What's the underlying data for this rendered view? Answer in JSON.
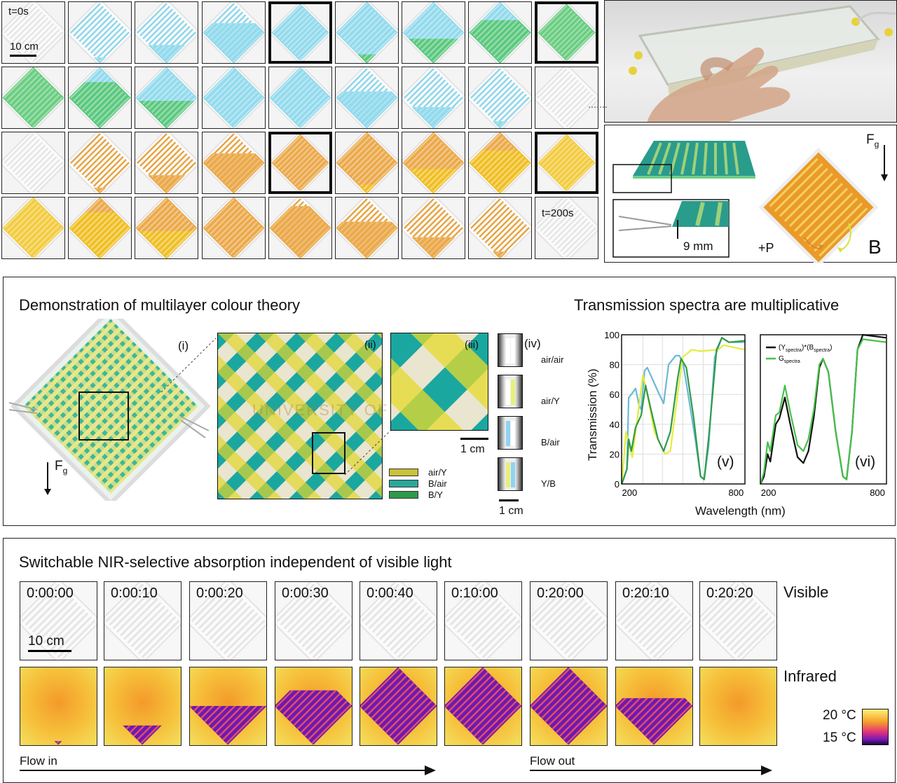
{
  "panelA": {
    "time_start": "t=0s",
    "time_end": "t=200s",
    "scale": "10 cm",
    "tiles": [
      [
        {
          "c": "clear",
          "f": 0
        },
        {
          "c": "blue",
          "f": 0.1
        },
        {
          "c": "blue",
          "f": 0.3
        },
        {
          "c": "blue",
          "f": 0.65
        },
        {
          "c": "blue",
          "f": 1,
          "thick": true
        },
        {
          "c": "blue",
          "o": "green",
          "f": 0.15
        },
        {
          "c": "blue",
          "o": "green",
          "f": 0.4
        },
        {
          "c": "blue",
          "o": "green",
          "f": 0.7
        },
        {
          "c": "green",
          "f": 1,
          "thick": true
        }
      ],
      [
        {
          "c": "green",
          "f": 1
        },
        {
          "c": "blue",
          "o": "green",
          "f": 0.75
        },
        {
          "c": "blue",
          "o": "green",
          "f": 0.45
        },
        {
          "c": "blue",
          "f": 1
        },
        {
          "c": "blue",
          "f": 1
        },
        {
          "c": "blue",
          "f": 0.6
        },
        {
          "c": "blue",
          "f": 0.35
        },
        {
          "c": "blue",
          "f": 0.12
        },
        {
          "c": "clear",
          "f": 0
        }
      ],
      [
        {
          "c": "clear",
          "f": 0
        },
        {
          "c": "orange",
          "f": 0.1
        },
        {
          "c": "orange",
          "f": 0.3
        },
        {
          "c": "orange",
          "f": 0.65
        },
        {
          "c": "orange",
          "f": 1,
          "thick": true
        },
        {
          "c": "orange",
          "o": "yellow",
          "f": 0.15
        },
        {
          "c": "orange",
          "o": "yellow",
          "f": 0.4
        },
        {
          "c": "orange",
          "o": "yellow",
          "f": 0.7
        },
        {
          "c": "yellow",
          "f": 1,
          "thick": true
        }
      ],
      [
        {
          "c": "yellow",
          "f": 1
        },
        {
          "c": "orange",
          "o": "yellow",
          "f": 0.75
        },
        {
          "c": "orange",
          "o": "yellow",
          "f": 0.45
        },
        {
          "c": "orange",
          "f": 1
        },
        {
          "c": "orange",
          "f": 0.85
        },
        {
          "c": "orange",
          "f": 0.6
        },
        {
          "c": "orange",
          "f": 0.35
        },
        {
          "c": "orange",
          "f": 0.12
        },
        {
          "c": "clear",
          "f": 0
        }
      ]
    ]
  },
  "panelB": {
    "force": "F",
    "force_sub": "g",
    "dimension": "9 mm",
    "pressure": "+P",
    "label": "B"
  },
  "panelC": {
    "title_left": "Demonstration of multilayer colour theory",
    "title_right": "Transmission spectra are multiplicative",
    "force": "F",
    "force_sub": "g",
    "sublabels": [
      "(i)",
      "(ii)",
      "(iii)",
      "(iv)"
    ],
    "watermark": "UNIVERSITY OF TORONTO",
    "scale": "1 cm",
    "legend": [
      {
        "label": "air/Y",
        "color": "#c9c23a"
      },
      {
        "label": "B/air",
        "color": "#2aa89a"
      },
      {
        "label": "B/Y",
        "color": "#2f9a4a"
      }
    ],
    "samples": [
      {
        "label": "air/air"
      },
      {
        "label": "air/Y"
      },
      {
        "label": "B/air"
      },
      {
        "label": "Y/B"
      }
    ],
    "sample_scale": "1 cm"
  },
  "chart_data": [
    {
      "type": "line",
      "panel": "(v)",
      "xlabel": "Wavelength (nm)",
      "ylabel": "Transmission (%)",
      "xlim": [
        155,
        850
      ],
      "ylim": [
        0,
        100
      ],
      "xticks": [
        200,
        800
      ],
      "yticks": [
        0,
        20,
        40,
        60,
        80,
        100
      ],
      "grid": true,
      "series": [
        {
          "color": "#6ab8d6",
          "points": [
            [
              156,
              0
            ],
            [
              185,
              10
            ],
            [
              195,
              58
            ],
            [
              210,
              60
            ],
            [
              234,
              64
            ],
            [
              255,
              52
            ],
            [
              265,
              50
            ],
            [
              285,
              76
            ],
            [
              300,
              78
            ],
            [
              330,
              70
            ],
            [
              360,
              62
            ],
            [
              392,
              54
            ],
            [
              420,
              80
            ],
            [
              460,
              86
            ],
            [
              480,
              86
            ],
            [
              500,
              82
            ],
            [
              530,
              60
            ],
            [
              570,
              30
            ],
            [
              600,
              5
            ],
            [
              620,
              3
            ],
            [
              645,
              25
            ],
            [
              680,
              85
            ],
            [
              720,
              98
            ],
            [
              760,
              95
            ],
            [
              850,
              95
            ]
          ]
        },
        {
          "color": "#e3ec3c",
          "points": [
            [
              156,
              0
            ],
            [
              180,
              35
            ],
            [
              200,
              25
            ],
            [
              215,
              18
            ],
            [
              240,
              40
            ],
            [
              275,
              73
            ],
            [
              300,
              60
            ],
            [
              340,
              35
            ],
            [
              400,
              20
            ],
            [
              430,
              22
            ],
            [
              470,
              60
            ],
            [
              500,
              85
            ],
            [
              550,
              90
            ],
            [
              600,
              89
            ],
            [
              700,
              90
            ],
            [
              730,
              93
            ],
            [
              850,
              90
            ]
          ]
        },
        {
          "color": "#2f9a4a",
          "points": [
            [
              156,
              0
            ],
            [
              185,
              10
            ],
            [
              195,
              30
            ],
            [
              210,
              22
            ],
            [
              234,
              38
            ],
            [
              265,
              46
            ],
            [
              290,
              66
            ],
            [
              320,
              50
            ],
            [
              360,
              30
            ],
            [
              392,
              22
            ],
            [
              430,
              35
            ],
            [
              470,
              70
            ],
            [
              490,
              84
            ],
            [
              520,
              78
            ],
            [
              560,
              45
            ],
            [
              600,
              5
            ],
            [
              620,
              3
            ],
            [
              645,
              30
            ],
            [
              690,
              90
            ],
            [
              720,
              98
            ],
            [
              760,
              95
            ],
            [
              850,
              96
            ]
          ]
        }
      ]
    },
    {
      "type": "line",
      "panel": "(vi)",
      "xlabel": "Wavelength (nm)",
      "xlim": [
        155,
        850
      ],
      "ylim": [
        0,
        100
      ],
      "xticks": [
        200,
        800
      ],
      "grid": false,
      "legend": "top-left",
      "series": [
        {
          "name": "(Yspectra)*(Bspectra)",
          "color": "#111111",
          "points": [
            [
              156,
              0
            ],
            [
              175,
              5
            ],
            [
              195,
              20
            ],
            [
              210,
              15
            ],
            [
              240,
              40
            ],
            [
              260,
              44
            ],
            [
              290,
              58
            ],
            [
              320,
              40
            ],
            [
              360,
              18
            ],
            [
              392,
              14
            ],
            [
              420,
              22
            ],
            [
              450,
              45
            ],
            [
              480,
              78
            ],
            [
              500,
              84
            ],
            [
              530,
              75
            ],
            [
              570,
              35
            ],
            [
              610,
              5
            ],
            [
              630,
              3
            ],
            [
              660,
              35
            ],
            [
              690,
              90
            ],
            [
              720,
              100
            ],
            [
              850,
              98
            ]
          ]
        },
        {
          "name": "Gspectra",
          "color": "#46c04a",
          "points": [
            [
              156,
              0
            ],
            [
              175,
              8
            ],
            [
              195,
              28
            ],
            [
              210,
              22
            ],
            [
              240,
              46
            ],
            [
              260,
              48
            ],
            [
              290,
              66
            ],
            [
              320,
              48
            ],
            [
              360,
              26
            ],
            [
              392,
              22
            ],
            [
              420,
              30
            ],
            [
              450,
              50
            ],
            [
              480,
              80
            ],
            [
              500,
              84
            ],
            [
              530,
              75
            ],
            [
              570,
              35
            ],
            [
              610,
              5
            ],
            [
              630,
              3
            ],
            [
              660,
              35
            ],
            [
              690,
              90
            ],
            [
              720,
              97
            ],
            [
              850,
              95
            ]
          ]
        }
      ]
    }
  ],
  "panelD": {
    "title": "Switchable NIR-selective absorption independent of visible light",
    "times": [
      "0:00:00",
      "0:00:10",
      "0:00:20",
      "0:00:30",
      "0:00:40",
      "0:10:00",
      "0:20:00",
      "0:20:10",
      "0:20:20"
    ],
    "ir_fill": [
      0.05,
      0.25,
      0.5,
      0.7,
      1,
      1,
      1,
      0.6,
      0
    ],
    "scale": "10 cm",
    "row_visible": "Visible",
    "row_infrared": "Infrared",
    "colorbar_high": "20 °C",
    "colorbar_low": "15 °C",
    "flow_in": "Flow in",
    "flow_out": "Flow out"
  },
  "colors": {
    "blue": "#7fd3ea",
    "green": "#4fc46a",
    "orange": "#e79a2a",
    "yellow": "#f1c21c",
    "ir_cold": "#6a1bb0",
    "ir_warm": "#f6b233"
  }
}
